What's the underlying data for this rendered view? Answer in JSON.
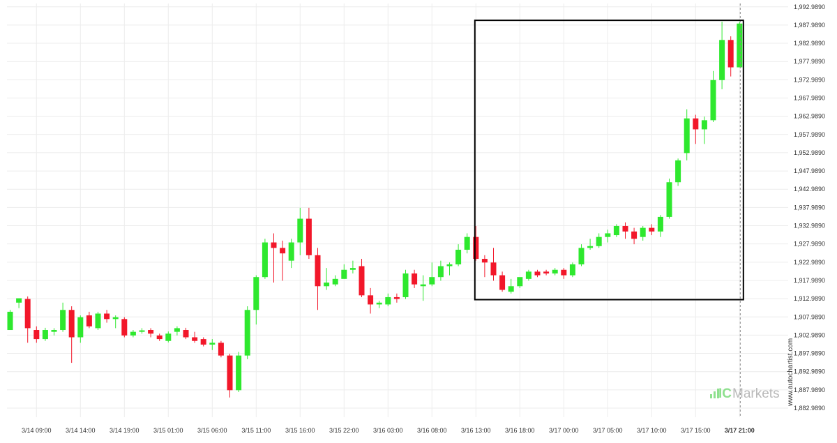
{
  "colors": {
    "up": "#2ee82e",
    "down": "#f2172a",
    "grid": "#ececec",
    "box": "#000000",
    "current_line": "#888888",
    "text": "#333333",
    "brand_bars": "#8ee08e",
    "brand_text": "#b9b9b9"
  },
  "watermark": {
    "site": "www.autochartist.com",
    "brand_prefix": "IC",
    "brand_suffix": "Markets"
  },
  "chart_data": {
    "type": "candlestick",
    "y_axis": {
      "range": [
        1880.5,
        1993.9
      ],
      "ticks": [
        "1,992.9890",
        "1,987.9890",
        "1,982.9890",
        "1,977.9890",
        "1,972.9890",
        "1,967.9890",
        "1,962.9890",
        "1,957.9890",
        "1,952.9890",
        "1,947.9890",
        "1,942.9890",
        "1,937.9890",
        "1,932.9890",
        "1,927.9890",
        "1,922.9890",
        "1,917.9890",
        "1,912.9890",
        "1,907.9890",
        "1,902.9890",
        "1,897.9890",
        "1,892.9890",
        "1,887.9890",
        "1,882.9890"
      ]
    },
    "x_axis": {
      "bar_interval_hours": 1,
      "tick_labels": [
        {
          "label": "3/14 09:00",
          "bar": 3
        },
        {
          "label": "3/14 14:00",
          "bar": 8
        },
        {
          "label": "3/14 19:00",
          "bar": 13
        },
        {
          "label": "3/15 01:00",
          "bar": 18
        },
        {
          "label": "3/15 06:00",
          "bar": 23
        },
        {
          "label": "3/15 11:00",
          "bar": 28
        },
        {
          "label": "3/15 16:00",
          "bar": 33
        },
        {
          "label": "3/15 22:00",
          "bar": 38
        },
        {
          "label": "3/16 03:00",
          "bar": 43
        },
        {
          "label": "3/16 08:00",
          "bar": 48
        },
        {
          "label": "3/16 13:00",
          "bar": 53
        },
        {
          "label": "3/16 18:00",
          "bar": 58
        },
        {
          "label": "3/17 00:00",
          "bar": 63
        },
        {
          "label": "3/17 05:00",
          "bar": 68
        },
        {
          "label": "3/17 10:00",
          "bar": 73
        },
        {
          "label": "3/17 15:00",
          "bar": 78
        },
        {
          "label": "3/17 21:00",
          "bar": 83,
          "bold": true
        }
      ]
    },
    "candles": [
      {
        "o": 1904.4,
        "h": 1909.9,
        "l": 1904.4,
        "c": 1909.4
      },
      {
        "o": 1911.9,
        "h": 1913.1,
        "l": 1910.4,
        "c": 1913.1
      },
      {
        "o": 1912.9,
        "h": 1913.6,
        "l": 1900.9,
        "c": 1904.9
      },
      {
        "o": 1904.4,
        "h": 1905.4,
        "l": 1900.9,
        "c": 1901.9
      },
      {
        "o": 1901.9,
        "h": 1905.0,
        "l": 1901.4,
        "c": 1904.4
      },
      {
        "o": 1903.9,
        "h": 1904.9,
        "l": 1902.9,
        "c": 1904.4
      },
      {
        "o": 1904.4,
        "h": 1911.9,
        "l": 1903.9,
        "c": 1909.9
      },
      {
        "o": 1909.9,
        "h": 1910.9,
        "l": 1895.4,
        "c": 1902.4
      },
      {
        "o": 1902.4,
        "h": 1908.4,
        "l": 1900.9,
        "c": 1907.9
      },
      {
        "o": 1908.4,
        "h": 1909.4,
        "l": 1904.9,
        "c": 1905.4
      },
      {
        "o": 1904.9,
        "h": 1909.4,
        "l": 1904.4,
        "c": 1908.9
      },
      {
        "o": 1908.9,
        "h": 1909.9,
        "l": 1906.4,
        "c": 1907.4
      },
      {
        "o": 1907.4,
        "h": 1908.4,
        "l": 1904.9,
        "c": 1907.9
      },
      {
        "o": 1907.4,
        "h": 1907.9,
        "l": 1902.4,
        "c": 1902.9
      },
      {
        "o": 1902.9,
        "h": 1904.4,
        "l": 1902.4,
        "c": 1903.9
      },
      {
        "o": 1903.9,
        "h": 1904.9,
        "l": 1903.4,
        "c": 1904.3
      },
      {
        "o": 1904.4,
        "h": 1904.9,
        "l": 1902.4,
        "c": 1903.4
      },
      {
        "o": 1902.9,
        "h": 1903.4,
        "l": 1901.4,
        "c": 1901.9
      },
      {
        "o": 1901.4,
        "h": 1904.0,
        "l": 1901.0,
        "c": 1903.4
      },
      {
        "o": 1903.9,
        "h": 1905.4,
        "l": 1902.9,
        "c": 1904.9
      },
      {
        "o": 1904.4,
        "h": 1905.0,
        "l": 1901.9,
        "c": 1902.4
      },
      {
        "o": 1902.4,
        "h": 1903.9,
        "l": 1900.9,
        "c": 1901.4
      },
      {
        "o": 1901.9,
        "h": 1902.4,
        "l": 1899.9,
        "c": 1900.4
      },
      {
        "o": 1900.4,
        "h": 1901.9,
        "l": 1898.9,
        "c": 1900.9
      },
      {
        "o": 1900.9,
        "h": 1901.4,
        "l": 1896.9,
        "c": 1897.4
      },
      {
        "o": 1897.4,
        "h": 1897.9,
        "l": 1885.9,
        "c": 1887.9
      },
      {
        "o": 1887.9,
        "h": 1898.4,
        "l": 1887.4,
        "c": 1897.4
      },
      {
        "o": 1897.4,
        "h": 1910.9,
        "l": 1896.4,
        "c": 1909.9
      },
      {
        "o": 1909.9,
        "h": 1919.4,
        "l": 1905.9,
        "c": 1918.9
      },
      {
        "o": 1918.9,
        "h": 1929.4,
        "l": 1918.4,
        "c": 1928.4
      },
      {
        "o": 1928.4,
        "h": 1930.9,
        "l": 1917.4,
        "c": 1926.9
      },
      {
        "o": 1926.9,
        "h": 1928.9,
        "l": 1917.9,
        "c": 1925.4
      },
      {
        "o": 1923.4,
        "h": 1929.4,
        "l": 1921.4,
        "c": 1928.4
      },
      {
        "o": 1928.4,
        "h": 1937.9,
        "l": 1924.9,
        "c": 1934.9
      },
      {
        "o": 1934.9,
        "h": 1937.9,
        "l": 1923.9,
        "c": 1924.9
      },
      {
        "o": 1924.9,
        "h": 1926.9,
        "l": 1909.9,
        "c": 1916.4
      },
      {
        "o": 1916.4,
        "h": 1921.4,
        "l": 1915.4,
        "c": 1917.4
      },
      {
        "o": 1916.9,
        "h": 1919.4,
        "l": 1916.4,
        "c": 1918.4
      },
      {
        "o": 1918.4,
        "h": 1922.4,
        "l": 1918.4,
        "c": 1920.9
      },
      {
        "o": 1920.9,
        "h": 1923.4,
        "l": 1919.9,
        "c": 1921.4
      },
      {
        "o": 1921.9,
        "h": 1923.9,
        "l": 1913.4,
        "c": 1913.9
      },
      {
        "o": 1913.9,
        "h": 1915.9,
        "l": 1908.9,
        "c": 1911.4
      },
      {
        "o": 1911.4,
        "h": 1912.4,
        "l": 1910.4,
        "c": 1911.9
      },
      {
        "o": 1911.4,
        "h": 1914.4,
        "l": 1910.9,
        "c": 1913.4
      },
      {
        "o": 1913.4,
        "h": 1914.4,
        "l": 1911.9,
        "c": 1912.9
      },
      {
        "o": 1913.4,
        "h": 1920.9,
        "l": 1912.9,
        "c": 1919.9
      },
      {
        "o": 1919.9,
        "h": 1920.9,
        "l": 1915.9,
        "c": 1916.9
      },
      {
        "o": 1916.4,
        "h": 1919.4,
        "l": 1912.4,
        "c": 1916.9
      },
      {
        "o": 1916.9,
        "h": 1922.9,
        "l": 1916.4,
        "c": 1918.9
      },
      {
        "o": 1918.9,
        "h": 1923.4,
        "l": 1917.9,
        "c": 1921.9
      },
      {
        "o": 1921.9,
        "h": 1922.9,
        "l": 1919.4,
        "c": 1922.4
      },
      {
        "o": 1922.4,
        "h": 1927.9,
        "l": 1921.9,
        "c": 1926.4
      },
      {
        "o": 1926.4,
        "h": 1930.9,
        "l": 1925.4,
        "c": 1929.9
      },
      {
        "o": 1929.9,
        "h": 1932.9,
        "l": 1923.4,
        "c": 1923.9
      },
      {
        "o": 1923.9,
        "h": 1924.9,
        "l": 1918.9,
        "c": 1922.9
      },
      {
        "o": 1922.9,
        "h": 1926.9,
        "l": 1917.9,
        "c": 1919.4
      },
      {
        "o": 1919.4,
        "h": 1920.4,
        "l": 1914.9,
        "c": 1915.4
      },
      {
        "o": 1914.9,
        "h": 1918.4,
        "l": 1914.4,
        "c": 1916.4
      },
      {
        "o": 1916.4,
        "h": 1918.4,
        "l": 1915.9,
        "c": 1918.9
      },
      {
        "o": 1918.4,
        "h": 1920.9,
        "l": 1917.9,
        "c": 1920.4
      },
      {
        "o": 1920.4,
        "h": 1920.9,
        "l": 1918.9,
        "c": 1919.4
      },
      {
        "o": 1920.4,
        "h": 1920.9,
        "l": 1919.4,
        "c": 1919.9
      },
      {
        "o": 1919.9,
        "h": 1921.4,
        "l": 1919.4,
        "c": 1920.9
      },
      {
        "o": 1920.9,
        "h": 1921.4,
        "l": 1918.4,
        "c": 1919.4
      },
      {
        "o": 1919.4,
        "h": 1922.9,
        "l": 1918.9,
        "c": 1922.4
      },
      {
        "o": 1922.4,
        "h": 1927.9,
        "l": 1921.9,
        "c": 1926.9
      },
      {
        "o": 1926.9,
        "h": 1929.4,
        "l": 1926.4,
        "c": 1927.4
      },
      {
        "o": 1927.4,
        "h": 1930.9,
        "l": 1926.9,
        "c": 1929.9
      },
      {
        "o": 1929.9,
        "h": 1931.9,
        "l": 1928.4,
        "c": 1930.9
      },
      {
        "o": 1930.4,
        "h": 1933.4,
        "l": 1929.9,
        "c": 1932.9
      },
      {
        "o": 1932.9,
        "h": 1933.9,
        "l": 1929.4,
        "c": 1931.4
      },
      {
        "o": 1931.4,
        "h": 1932.4,
        "l": 1927.9,
        "c": 1929.4
      },
      {
        "o": 1929.9,
        "h": 1932.9,
        "l": 1928.9,
        "c": 1932.4
      },
      {
        "o": 1932.4,
        "h": 1933.4,
        "l": 1930.4,
        "c": 1931.4
      },
      {
        "o": 1931.4,
        "h": 1935.9,
        "l": 1929.9,
        "c": 1935.4
      },
      {
        "o": 1935.4,
        "h": 1945.9,
        "l": 1934.9,
        "c": 1944.9
      },
      {
        "o": 1944.9,
        "h": 1951.4,
        "l": 1943.9,
        "c": 1950.9
      },
      {
        "o": 1952.9,
        "h": 1964.9,
        "l": 1950.9,
        "c": 1962.4
      },
      {
        "o": 1962.4,
        "h": 1963.4,
        "l": 1955.4,
        "c": 1959.4
      },
      {
        "o": 1959.4,
        "h": 1962.9,
        "l": 1955.4,
        "c": 1961.9
      },
      {
        "o": 1961.9,
        "h": 1975.4,
        "l": 1961.4,
        "c": 1972.9
      },
      {
        "o": 1972.9,
        "h": 1988.9,
        "l": 1970.4,
        "c": 1983.9
      },
      {
        "o": 1983.9,
        "h": 1984.9,
        "l": 1973.9,
        "c": 1976.4
      },
      {
        "o": 1976.4,
        "h": 1988.9,
        "l": 1976.4,
        "c": 1988.4
      }
    ],
    "pattern_box": {
      "from_bar": 53,
      "to_bar": 83,
      "high": 1988.9,
      "low": 1913.1
    }
  }
}
